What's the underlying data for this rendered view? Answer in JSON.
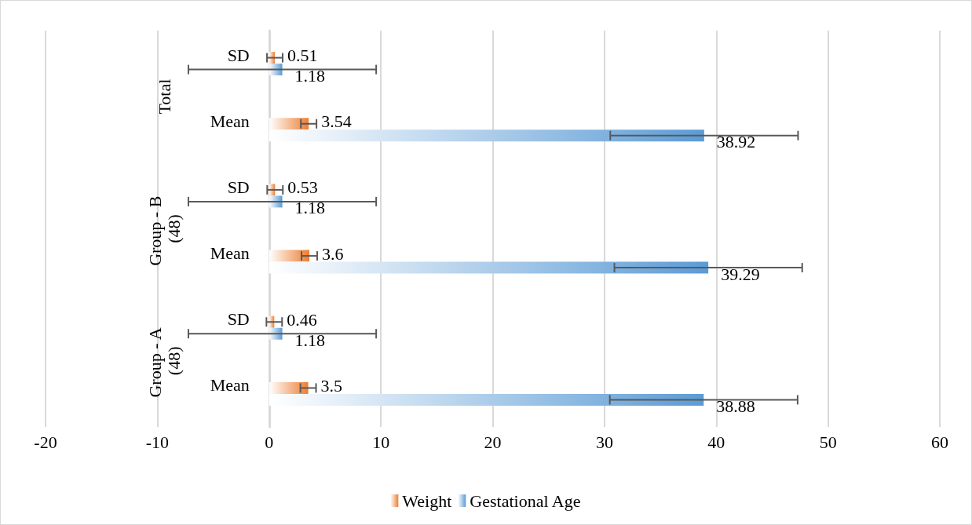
{
  "chart_data": {
    "type": "bar",
    "orientation": "horizontal",
    "categories": [
      "SD",
      "Mean",
      "SD",
      "Mean",
      "SD",
      "Mean"
    ],
    "series": [
      {
        "name": "Weight",
        "color": "#ed7d31",
        "values": [
          0.51,
          3.54,
          0.53,
          3.6,
          0.46,
          3.5
        ],
        "errors": [
          0.7,
          0.7,
          0.7,
          0.7,
          0.7,
          0.7
        ]
      },
      {
        "name": "Gestational Age",
        "color": "#5b9bd5",
        "values": [
          1.18,
          38.92,
          1.18,
          39.29,
          1.18,
          38.88
        ],
        "errors": [
          8.4,
          8.4,
          8.4,
          8.4,
          8.4,
          8.4
        ]
      }
    ],
    "xlim": [
      -20,
      60
    ],
    "xticks": [
      -20,
      -10,
      0,
      10,
      20,
      30,
      40,
      50,
      60
    ],
    "grid": "x",
    "legend": "bottom",
    "data_labels": true,
    "annotations": [
      "Total",
      "Group - B (48)",
      "Group - A (48)"
    ]
  }
}
